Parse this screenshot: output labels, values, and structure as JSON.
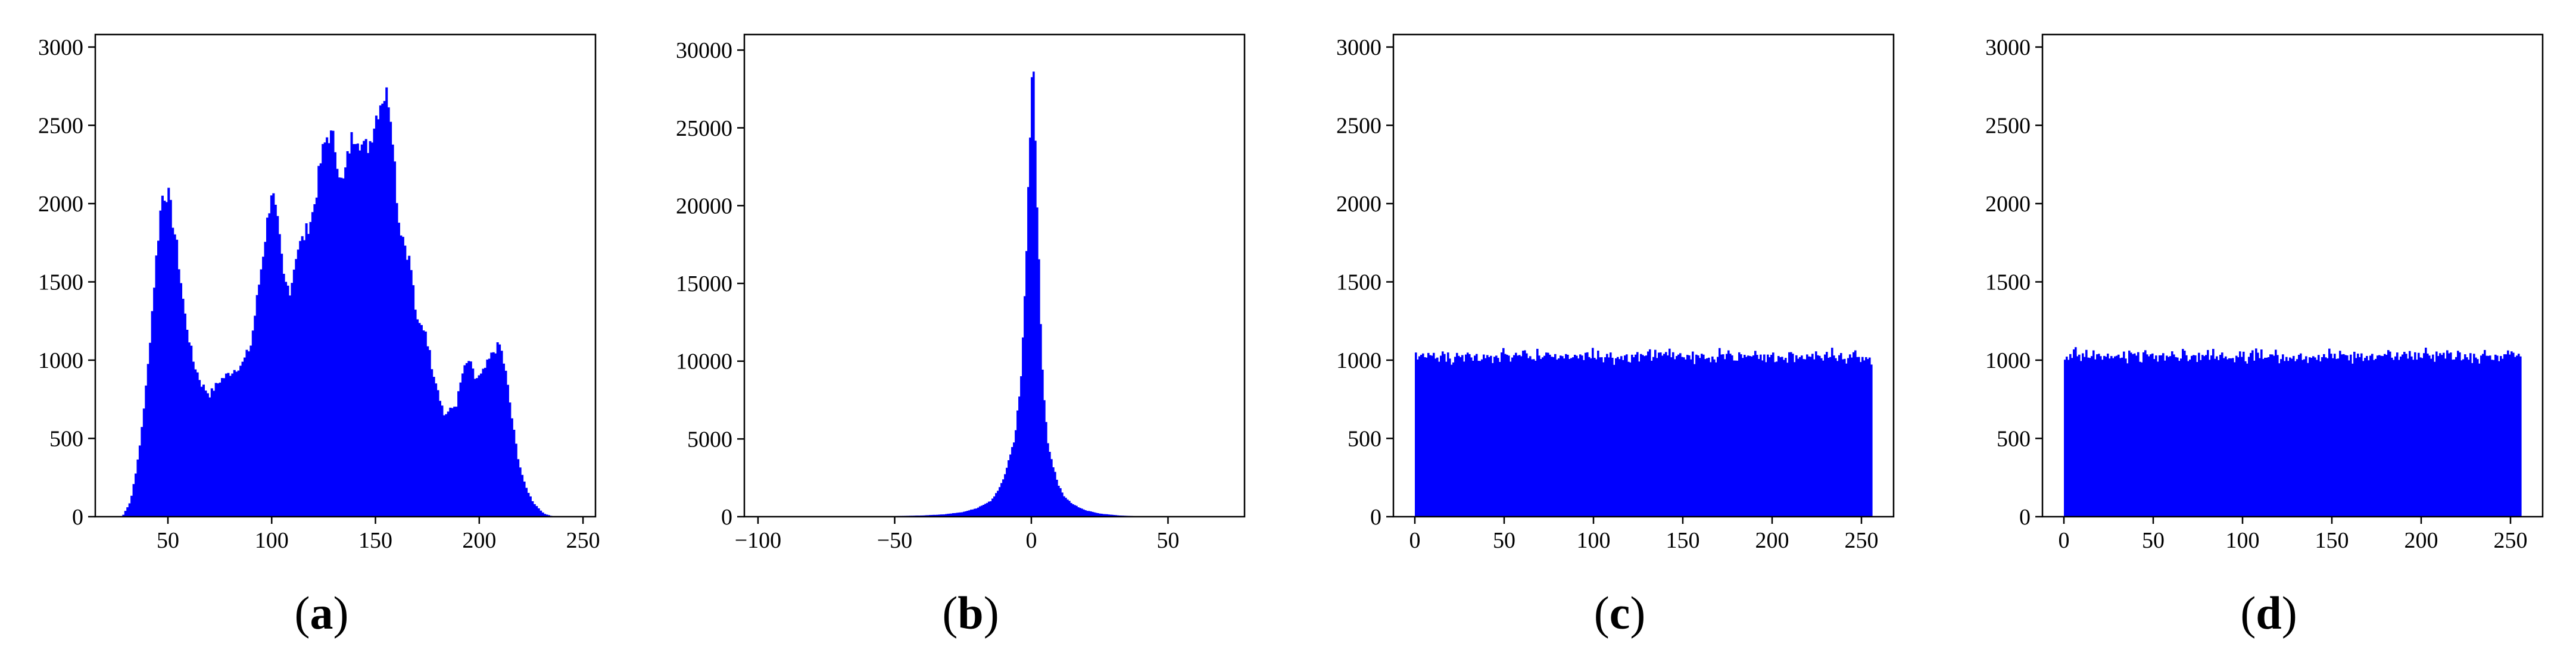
{
  "chart_data": [
    {
      "type": "histogram",
      "label": "a",
      "bar_color": "#0000ff",
      "xlim": [
        15,
        256
      ],
      "ylim": [
        0,
        3080
      ],
      "xticks": [
        50,
        100,
        150,
        200,
        250
      ],
      "yticks": [
        0,
        500,
        1000,
        1500,
        2000,
        2500,
        3000
      ],
      "envelope": [
        [
          28,
          0
        ],
        [
          32,
          100
        ],
        [
          36,
          400
        ],
        [
          40,
          900
        ],
        [
          44,
          1600
        ],
        [
          47,
          2050
        ],
        [
          50,
          2070
        ],
        [
          54,
          1750
        ],
        [
          58,
          1300
        ],
        [
          62,
          1000
        ],
        [
          66,
          850
        ],
        [
          70,
          780
        ],
        [
          75,
          870
        ],
        [
          80,
          920
        ],
        [
          86,
          980
        ],
        [
          90,
          1100
        ],
        [
          94,
          1500
        ],
        [
          98,
          1900
        ],
        [
          100,
          2100
        ],
        [
          103,
          1850
        ],
        [
          106,
          1500
        ],
        [
          109,
          1450
        ],
        [
          112,
          1700
        ],
        [
          116,
          1800
        ],
        [
          120,
          1950
        ],
        [
          124,
          2300
        ],
        [
          127,
          2450
        ],
        [
          130,
          2400
        ],
        [
          134,
          2100
        ],
        [
          138,
          2400
        ],
        [
          141,
          2460
        ],
        [
          144,
          2350
        ],
        [
          147,
          2380
        ],
        [
          150,
          2550
        ],
        [
          153,
          2680
        ],
        [
          156,
          2700
        ],
        [
          158,
          2500
        ],
        [
          161,
          1900
        ],
        [
          164,
          1750
        ],
        [
          167,
          1600
        ],
        [
          170,
          1230
        ],
        [
          174,
          1200
        ],
        [
          177,
          970
        ],
        [
          180,
          820
        ],
        [
          183,
          650
        ],
        [
          186,
          680
        ],
        [
          189,
          720
        ],
        [
          192,
          920
        ],
        [
          195,
          1000
        ],
        [
          198,
          880
        ],
        [
          201,
          900
        ],
        [
          204,
          980
        ],
        [
          207,
          1060
        ],
        [
          210,
          1100
        ],
        [
          213,
          900
        ],
        [
          216,
          600
        ],
        [
          219,
          350
        ],
        [
          222,
          200
        ],
        [
          226,
          90
        ],
        [
          231,
          20
        ],
        [
          236,
          0
        ]
      ]
    },
    {
      "type": "histogram",
      "label": "b",
      "bar_color": "#0000ff",
      "xlim": [
        -105,
        78
      ],
      "ylim": [
        0,
        31000
      ],
      "xticks": [
        -100,
        -50,
        0,
        50
      ],
      "yticks": [
        0,
        5000,
        10000,
        15000,
        20000,
        25000,
        30000
      ],
      "envelope": [
        [
          -95,
          0
        ],
        [
          -60,
          0
        ],
        [
          -40,
          80
        ],
        [
          -32,
          150
        ],
        [
          -25,
          300
        ],
        [
          -20,
          550
        ],
        [
          -15,
          1000
        ],
        [
          -12,
          1700
        ],
        [
          -10,
          2600
        ],
        [
          -8,
          3800
        ],
        [
          -6,
          5200
        ],
        [
          -4,
          8500
        ],
        [
          -3,
          12000
        ],
        [
          -2,
          16500
        ],
        [
          -1,
          21500
        ],
        [
          0,
          28500
        ],
        [
          0.5,
          30300
        ],
        [
          1,
          27000
        ],
        [
          2,
          21000
        ],
        [
          3,
          14500
        ],
        [
          4,
          9500
        ],
        [
          5,
          6800
        ],
        [
          6,
          4800
        ],
        [
          8,
          3200
        ],
        [
          10,
          2000
        ],
        [
          12,
          1300
        ],
        [
          15,
          800
        ],
        [
          20,
          400
        ],
        [
          25,
          200
        ],
        [
          32,
          80
        ],
        [
          40,
          20
        ],
        [
          45,
          0
        ],
        [
          75,
          0
        ]
      ]
    },
    {
      "type": "histogram",
      "label": "c",
      "bar_color": "#0000ff",
      "xlim": [
        -12,
        268
      ],
      "ylim": [
        0,
        3080
      ],
      "xticks": [
        0,
        50,
        100,
        150,
        200,
        250
      ],
      "yticks": [
        0,
        500,
        1000,
        1500,
        2000,
        2500,
        3000
      ],
      "bins": 256,
      "mean_count": 1024,
      "count_range": [
        960,
        1090
      ]
    },
    {
      "type": "histogram",
      "label": "d",
      "bar_color": "#0000ff",
      "xlim": [
        -12,
        268
      ],
      "ylim": [
        0,
        3080
      ],
      "xticks": [
        0,
        50,
        100,
        150,
        200,
        250
      ],
      "yticks": [
        0,
        500,
        1000,
        1500,
        2000,
        2500,
        3000
      ],
      "bins": 256,
      "mean_count": 1024,
      "count_range": [
        960,
        1090
      ]
    }
  ]
}
